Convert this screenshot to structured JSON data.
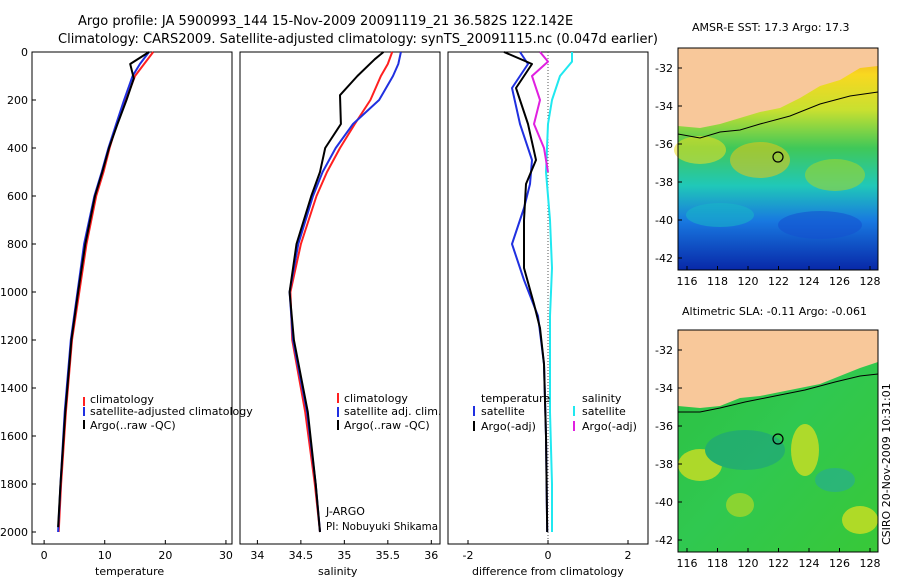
{
  "header": {
    "line1": "Argo profile: JA 5900993_144 15-Nov-2009 20091119_21 36.582S 122.142E",
    "line2": "Climatology: CARS2009. Satellite-adjusted climatology: synTS_20091115.nc (0.047d earlier)"
  },
  "side_label": "CSIRO 20-Nov-2009 10:31:01",
  "profiles": {
    "depth_ticks": [
      "0",
      "200",
      "400",
      "600",
      "800",
      "1000",
      "1200",
      "1400",
      "1600",
      "1800",
      "2000"
    ],
    "temperature": {
      "xlabel": "temperature",
      "x_ticks": [
        "0",
        "10",
        "20",
        "30"
      ],
      "legend": [
        "climatology",
        "satellite-adjusted climatology",
        "Argo(..raw -QC)"
      ]
    },
    "salinity": {
      "xlabel": "salinity",
      "x_ticks": [
        "34",
        "34.5",
        "35",
        "35.5",
        "36"
      ],
      "legend": [
        "climatology",
        "satellite adj. clim.",
        "Argo(..raw -QC)"
      ],
      "note_line1": "J-ARGO",
      "note_line2": "PI: Nobuyuki Shikama"
    },
    "difference": {
      "xlabel": "difference from climatology",
      "x_ticks": [
        "-2",
        "0",
        "2"
      ],
      "legend_left_title": "temperature",
      "legend_left": [
        "satellite",
        "Argo(-adj)"
      ],
      "legend_right_title": "salinity",
      "legend_right": [
        "satellite",
        "Argo(-adj)"
      ]
    }
  },
  "maps": {
    "sst": {
      "title": "AMSR-E SST: 17.3 Argo: 17.3",
      "y_ticks": [
        "-32",
        "-34",
        "-36",
        "-38",
        "-40",
        "-42"
      ],
      "x_ticks": [
        "116",
        "118",
        "120",
        "122",
        "124",
        "126",
        "128"
      ]
    },
    "sla": {
      "title": "Altimetric SLA: -0.11 Argo: -0.061",
      "y_ticks": [
        "-32",
        "-34",
        "-36",
        "-38",
        "-40",
        "-42"
      ],
      "x_ticks": [
        "116",
        "118",
        "120",
        "122",
        "124",
        "126",
        "128"
      ]
    }
  },
  "colors": {
    "climatology": "#ff2020",
    "satellite": "#2030e0",
    "argo": "#000000",
    "sat_salinity": "#20e8f0",
    "argo_salinity": "#e020e0",
    "land": "#f8c89a"
  },
  "chart_data": [
    {
      "type": "line",
      "xlabel": "temperature",
      "ylabel": "",
      "xlim": [
        -2,
        31
      ],
      "ylim": [
        2050,
        0
      ],
      "series": [
        {
          "name": "climatology",
          "x": [
            18.0,
            16.5,
            15.0,
            13.5,
            12.0,
            10.8,
            9.8,
            8.6,
            7.0,
            5.8,
            4.6,
            3.6,
            2.8,
            2.4
          ],
          "y": [
            0,
            50,
            100,
            200,
            300,
            400,
            500,
            600,
            800,
            1000,
            1200,
            1500,
            1800,
            2000
          ]
        },
        {
          "name": "satellite-adjusted climatology",
          "x": [
            17.3,
            15.8,
            14.6,
            13.2,
            11.9,
            10.6,
            9.5,
            8.3,
            6.6,
            5.5,
            4.4,
            3.4,
            2.7,
            2.3
          ],
          "y": [
            0,
            50,
            100,
            200,
            300,
            400,
            500,
            600,
            800,
            1000,
            1200,
            1500,
            1800,
            2000
          ]
        },
        {
          "name": "Argo(..raw -QC)",
          "x": [
            17.3,
            14.2,
            14.8,
            13.6,
            12.1,
            10.7,
            9.6,
            8.4,
            6.8,
            5.6,
            4.5,
            3.5,
            2.7,
            2.3
          ],
          "y": [
            0,
            50,
            110,
            200,
            300,
            400,
            500,
            600,
            800,
            1000,
            1200,
            1500,
            1800,
            1980
          ]
        }
      ]
    },
    {
      "type": "line",
      "xlabel": "salinity",
      "ylabel": "",
      "xlim": [
        33.8,
        36.1
      ],
      "ylim": [
        2050,
        0
      ],
      "series": [
        {
          "name": "climatology",
          "x": [
            35.55,
            35.5,
            35.42,
            35.3,
            35.12,
            34.95,
            34.8,
            34.68,
            34.5,
            34.38,
            34.4,
            34.55,
            34.66,
            34.72
          ],
          "y": [
            0,
            50,
            100,
            200,
            300,
            400,
            500,
            600,
            800,
            1000,
            1200,
            1500,
            1800,
            2000
          ]
        },
        {
          "name": "satellite adj. clim.",
          "x": [
            35.65,
            35.62,
            35.56,
            35.4,
            35.1,
            34.9,
            34.75,
            34.64,
            34.47,
            34.37,
            34.41,
            34.57,
            34.67,
            34.72
          ],
          "y": [
            0,
            50,
            100,
            200,
            300,
            400,
            500,
            600,
            800,
            1000,
            1200,
            1500,
            1800,
            2000
          ]
        },
        {
          "name": "Argo(..raw -QC)",
          "x": [
            35.45,
            35.35,
            35.15,
            34.95,
            34.96,
            34.78,
            34.72,
            34.62,
            34.45,
            34.37,
            34.42,
            34.58,
            34.67,
            34.72
          ],
          "y": [
            0,
            30,
            100,
            180,
            300,
            400,
            500,
            600,
            800,
            1000,
            1200,
            1500,
            1800,
            2000
          ]
        }
      ]
    },
    {
      "type": "line",
      "xlabel": "difference from climatology",
      "ylabel": "",
      "xlim": [
        -2.5,
        2.5
      ],
      "ylim": [
        2050,
        0
      ],
      "series": [
        {
          "name": "satellite",
          "x": [
            -0.7,
            -0.5,
            -0.9,
            -0.7,
            -0.4,
            -0.45,
            -0.6,
            -0.9,
            -0.6,
            -0.25,
            -0.1,
            -0.05,
            -0.02
          ],
          "y": [
            0,
            50,
            150,
            300,
            450,
            550,
            650,
            800,
            950,
            1100,
            1300,
            1600,
            2000
          ]
        },
        {
          "name": "Argo(-adj)",
          "x": [
            -1.1,
            -0.4,
            -0.8,
            -0.5,
            -0.3,
            -0.55,
            -0.6,
            -0.6,
            -0.35,
            -0.2,
            -0.1,
            -0.05,
            -0.02
          ],
          "y": [
            0,
            50,
            150,
            300,
            450,
            550,
            700,
            900,
            1050,
            1150,
            1300,
            1600,
            2000
          ]
        },
        {
          "name": "satellite",
          "x": [
            0.6,
            0.6,
            0.3,
            0.1,
            0.0,
            -0.05,
            0.05,
            0.1,
            0.05,
            0.05,
            0.05,
            0.1,
            0.1
          ],
          "y": [
            0,
            40,
            100,
            200,
            300,
            500,
            700,
            900,
            1100,
            1300,
            1500,
            1800,
            2000
          ]
        },
        {
          "name": "Argo(-adj)",
          "x": [
            -0.2,
            0.0,
            -0.4,
            -0.2,
            -0.35,
            -0.1,
            0.0
          ],
          "y": [
            0,
            40,
            100,
            200,
            300,
            400,
            500
          ]
        }
      ]
    }
  ]
}
